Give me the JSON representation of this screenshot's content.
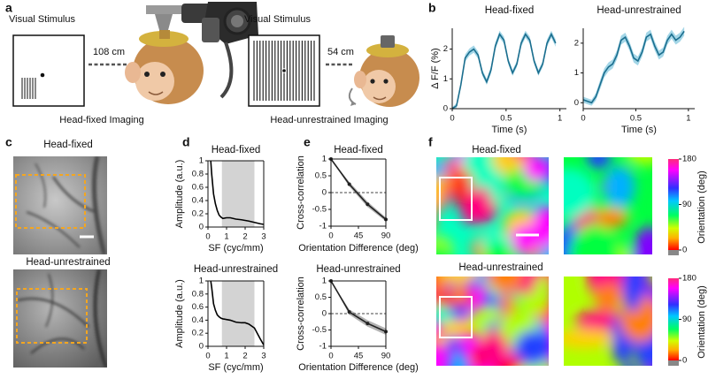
{
  "panel_labels": [
    "a",
    "b",
    "c",
    "d",
    "e",
    "f"
  ],
  "panel_a": {
    "left": {
      "stimulus_label": "Visual Stimulus",
      "distance": "108 cm",
      "caption": "Head-fixed Imaging"
    },
    "right": {
      "stimulus_label": "Visual Stimulus",
      "distance": "54 cm",
      "caption": "Head-unrestrained Imaging"
    }
  },
  "panel_c": {
    "titles": [
      "Head-fixed",
      "Head-unrestrained"
    ]
  },
  "panel_f": {
    "titles": [
      "Head-fixed",
      "Head-unrestrained"
    ],
    "colorbar": {
      "label": "Orientation (deg)",
      "lim": [
        0,
        180
      ],
      "ticks": [
        0,
        90,
        180
      ]
    }
  },
  "chart_data": [
    {
      "type": "line",
      "title": "Head-fixed",
      "xlabel": "Time (s)",
      "ylabel": "Δ F/F (%)",
      "x": [
        0,
        0.04,
        0.08,
        0.12,
        0.16,
        0.2,
        0.24,
        0.28,
        0.32,
        0.36,
        0.4,
        0.44,
        0.48,
        0.52,
        0.56,
        0.6,
        0.64,
        0.68,
        0.72,
        0.76,
        0.8,
        0.84,
        0.88,
        0.92,
        0.96
      ],
      "series": [
        {
          "color": "#1b6e8e",
          "band_color": "#86c8df",
          "values": [
            0,
            0.1,
            0.8,
            1.7,
            1.9,
            2.0,
            1.8,
            1.2,
            0.9,
            1.3,
            2.1,
            2.5,
            2.3,
            1.6,
            1.2,
            1.5,
            2.2,
            2.5,
            2.3,
            1.6,
            1.2,
            1.5,
            2.2,
            2.5,
            2.2
          ],
          "error": [
            0.05,
            0.08,
            0.1,
            0.12,
            0.12,
            0.12,
            0.12,
            0.1,
            0.1,
            0.12,
            0.12,
            0.12,
            0.12,
            0.1,
            0.1,
            0.1,
            0.12,
            0.12,
            0.12,
            0.1,
            0.1,
            0.1,
            0.12,
            0.12,
            0.12
          ]
        }
      ],
      "xlim": [
        0,
        1.06
      ],
      "ylim": [
        0,
        2.7
      ],
      "xticks": [
        0,
        0.5,
        1
      ],
      "yticks": [
        0,
        1,
        2
      ]
    },
    {
      "type": "line",
      "title": "Head-unrestrained",
      "xlabel": "Time (s)",
      "x": [
        0,
        0.04,
        0.08,
        0.12,
        0.16,
        0.2,
        0.24,
        0.28,
        0.32,
        0.36,
        0.4,
        0.44,
        0.48,
        0.52,
        0.56,
        0.6,
        0.64,
        0.68,
        0.72,
        0.76,
        0.8,
        0.84,
        0.88,
        0.92,
        0.96
      ],
      "series": [
        {
          "color": "#1b6e8e",
          "band_color": "#86c8df",
          "values": [
            0.1,
            0.05,
            0.0,
            0.2,
            0.6,
            1.0,
            1.2,
            1.3,
            1.6,
            2.1,
            2.2,
            1.9,
            1.5,
            1.4,
            1.7,
            2.2,
            2.3,
            1.9,
            1.6,
            1.7,
            2.1,
            2.3,
            2.1,
            2.2,
            2.4
          ],
          "error": [
            0.1,
            0.1,
            0.1,
            0.12,
            0.15,
            0.15,
            0.15,
            0.15,
            0.15,
            0.15,
            0.15,
            0.15,
            0.15,
            0.15,
            0.15,
            0.15,
            0.15,
            0.15,
            0.15,
            0.15,
            0.15,
            0.15,
            0.15,
            0.15,
            0.15
          ]
        }
      ],
      "xlim": [
        0,
        1.06
      ],
      "ylim": [
        -0.2,
        2.5
      ],
      "xticks": [
        0,
        0.5,
        1
      ],
      "yticks": [
        0,
        1,
        2
      ]
    },
    {
      "type": "line",
      "title": "Head-fixed",
      "xlabel": "SF (cyc/mm)",
      "ylabel": "Amplitude (a.u.)",
      "box": true,
      "x": [
        0.15,
        0.2,
        0.3,
        0.4,
        0.5,
        0.6,
        0.7,
        0.8,
        1,
        1.2,
        1.5,
        1.8,
        2,
        2.2,
        2.5,
        2.8,
        3
      ],
      "series": [
        {
          "color": "#000000",
          "values": [
            1,
            0.8,
            0.5,
            0.35,
            0.25,
            0.18,
            0.15,
            0.13,
            0.14,
            0.14,
            0.12,
            0.11,
            0.1,
            0.09,
            0.07,
            0.05,
            0.04
          ]
        }
      ],
      "shaded_span": [
        0.75,
        2.5
      ],
      "shade_color": "#d3d3d3",
      "xlim": [
        0,
        3
      ],
      "ylim": [
        0,
        1
      ],
      "xticks": [
        0,
        1,
        2,
        3
      ],
      "yticks": [
        0,
        0.2,
        0.4,
        0.6,
        0.8,
        1
      ]
    },
    {
      "type": "line",
      "title": "Head-unrestrained",
      "xlabel": "SF (cyc/mm)",
      "ylabel": "Amplitude (a.u.)",
      "box": true,
      "x": [
        0.15,
        0.2,
        0.3,
        0.4,
        0.5,
        0.6,
        0.7,
        0.8,
        1,
        1.2,
        1.5,
        1.8,
        2,
        2.2,
        2.5,
        2.8,
        3
      ],
      "series": [
        {
          "color": "#000000",
          "values": [
            1,
            0.9,
            0.65,
            0.55,
            0.48,
            0.45,
            0.43,
            0.42,
            0.41,
            0.4,
            0.37,
            0.36,
            0.36,
            0.34,
            0.28,
            0.12,
            0.02
          ]
        }
      ],
      "shaded_span": [
        0.75,
        2.5
      ],
      "shade_color": "#d3d3d3",
      "xlim": [
        0,
        3
      ],
      "ylim": [
        0,
        1
      ],
      "xticks": [
        0,
        1,
        2,
        3
      ],
      "yticks": [
        0,
        0.2,
        0.4,
        0.6,
        0.8,
        1
      ]
    },
    {
      "type": "line",
      "title": "Head-fixed",
      "xlabel": "Orientation Difference (deg)",
      "ylabel": "Cross-correlation",
      "box": true,
      "markers": true,
      "x": [
        0,
        30,
        60,
        90
      ],
      "series": [
        {
          "color": "#222222",
          "band_color": "#9a9a9a",
          "values": [
            1,
            0.25,
            -0.35,
            -0.8
          ],
          "error": [
            0,
            0.07,
            0.08,
            0.06
          ]
        }
      ],
      "hline": 0,
      "xlim": [
        0,
        90
      ],
      "ylim": [
        -1,
        1
      ],
      "xticks": [
        0,
        45,
        90
      ],
      "yticks": [
        -1,
        -0.5,
        0,
        0.5,
        1
      ]
    },
    {
      "type": "line",
      "title": "Head-unrestrained",
      "xlabel": "Orientation Difference (deg)",
      "ylabel": "Cross-correlation",
      "box": true,
      "markers": true,
      "x": [
        0,
        30,
        60,
        90
      ],
      "series": [
        {
          "color": "#222222",
          "band_color": "#9a9a9a",
          "values": [
            1,
            0.05,
            -0.3,
            -0.55
          ],
          "error": [
            0,
            0.08,
            0.1,
            0.1
          ]
        }
      ],
      "hline": 0,
      "xlim": [
        0,
        90
      ],
      "ylim": [
        -1,
        1
      ],
      "xticks": [
        0,
        45,
        90
      ],
      "yticks": [
        -1,
        -0.5,
        0,
        0.5,
        1
      ]
    }
  ]
}
